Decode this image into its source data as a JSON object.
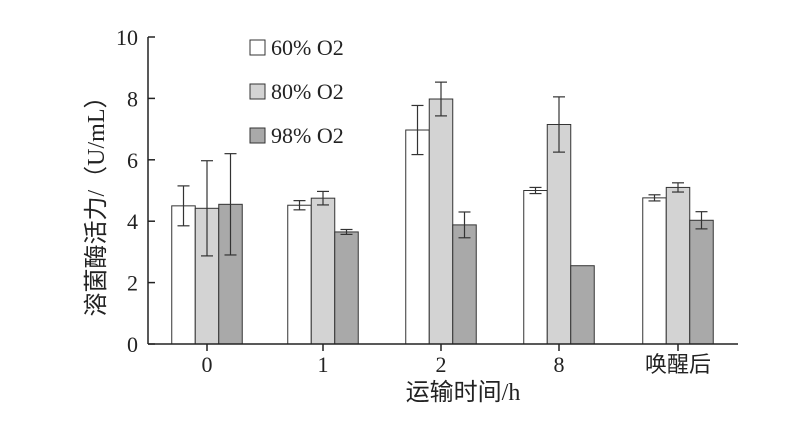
{
  "chart_data": {
    "type": "bar",
    "categories": [
      "0",
      "1",
      "2",
      "8",
      "唤醒后"
    ],
    "series": [
      {
        "name": "60% O2",
        "values": [
          4.5,
          4.52,
          6.97,
          5.0,
          4.76
        ],
        "errors": [
          0.65,
          0.15,
          0.8,
          0.1,
          0.1
        ],
        "color": "#ffffff"
      },
      {
        "name": "80% O2",
        "values": [
          4.42,
          4.75,
          7.98,
          7.15,
          5.1
        ],
        "errors": [
          1.55,
          0.22,
          0.55,
          0.9,
          0.15
        ],
        "color": "#d3d3d3"
      },
      {
        "name": "98% O2",
        "values": [
          4.55,
          3.65,
          3.88,
          2.55,
          4.03
        ],
        "errors": [
          1.65,
          0.08,
          0.42,
          0.0,
          0.28
        ],
        "color": "#a9a9a9"
      }
    ],
    "xlabel": "运输时间/h",
    "ylabel": "溶菌酶活力/（U/mL）",
    "ylim": [
      0,
      10
    ],
    "yticks": [
      "0",
      "2",
      "4",
      "6",
      "8",
      "10"
    ],
    "grid": false,
    "legend_position": "top-left"
  }
}
